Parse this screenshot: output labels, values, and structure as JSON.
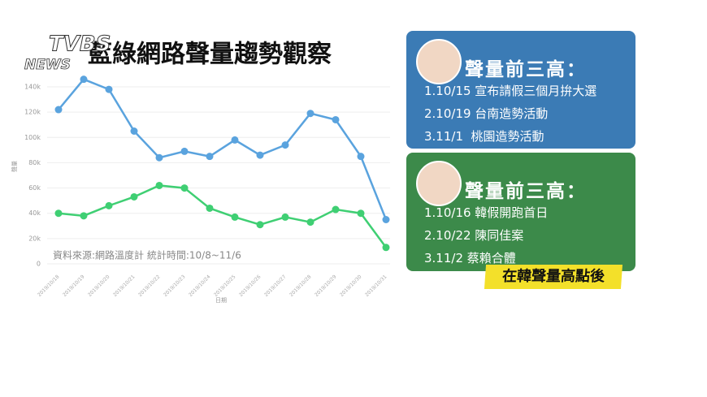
{
  "logo": {
    "top": "TVBS",
    "bottom": "NEWS"
  },
  "chart_data": {
    "type": "line",
    "title": "藍綠網路聲量趨勢觀察",
    "source": "資料來源:網路溫度計 統計時間:10/8~11/6",
    "y_label": "聲量",
    "x_label": "日期",
    "categories": [
      "2019/10/18",
      "2019/10/19",
      "2019/10/20",
      "2019/10/21",
      "2019/10/22",
      "2019/10/23",
      "2019/10/24",
      "2019/10/25",
      "2019/10/26",
      "2019/10/27",
      "2019/10/28",
      "2019/10/29",
      "2019/10/30",
      "2019/10/31"
    ],
    "series": [
      {
        "color": "#5aa3de",
        "values": [
          122000,
          146000,
          138000,
          105000,
          84000,
          89000,
          85000,
          98000,
          86000,
          94000,
          119000,
          114000,
          85000,
          35000
        ]
      },
      {
        "color": "#3fcf73",
        "values": [
          40000,
          38000,
          46000,
          53000,
          62000,
          60000,
          44000,
          37000,
          31000,
          37000,
          33000,
          43000,
          40000,
          13000
        ]
      }
    ],
    "ylim": [
      0,
      140000
    ],
    "yticks": [
      0,
      {
        "value": 20000,
        "label": "20k"
      },
      {
        "value": 40000,
        "label": "40k"
      },
      {
        "value": 60000,
        "label": "60k"
      },
      {
        "value": 80000,
        "label": "80k"
      },
      {
        "value": 100000,
        "label": "100k"
      },
      {
        "value": 120000,
        "label": "120k"
      },
      {
        "value": 140000,
        "label": "140k"
      }
    ],
    "grid": true
  },
  "panels": [
    {
      "heading": "聲量前三高：",
      "items": [
        "1.10/15 宣布請假三個月拚大選",
        "2.10/19 台南造勢活動",
        "3.11/1  桃園造勢活動"
      ]
    },
    {
      "heading": "聲量前三高：",
      "items": [
        "1.10/16 韓假開跑首日",
        "2.10/22 陳同佳案",
        "3.11/2 蔡賴合體"
      ]
    }
  ],
  "callout": "在韓聲量高點後"
}
